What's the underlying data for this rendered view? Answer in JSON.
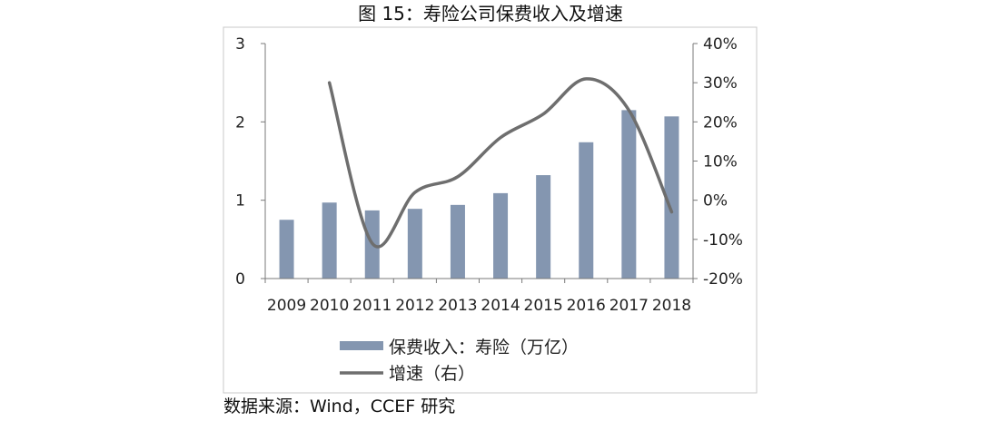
{
  "title": "图 15：寿险公司保费收入及增速",
  "source": "数据来源：Wind，CCEF 研究",
  "chart_data": {
    "type": "bar+line",
    "categories": [
      "2009",
      "2010",
      "2011",
      "2012",
      "2013",
      "2014",
      "2015",
      "2016",
      "2017",
      "2018"
    ],
    "series": [
      {
        "name": "保费收入：寿险（万亿）",
        "type": "bar",
        "axis": "left",
        "values": [
          0.75,
          0.97,
          0.87,
          0.89,
          0.94,
          1.09,
          1.32,
          1.74,
          2.15,
          2.07
        ],
        "color": "#8496B0"
      },
      {
        "name": "增速（右）",
        "type": "line",
        "axis": "right",
        "values": [
          null,
          30,
          -11,
          2,
          6,
          16,
          22,
          31,
          23,
          -3
        ],
        "color": "#6E6E6E"
      }
    ],
    "y_left": {
      "lim": [
        0,
        3
      ],
      "ticks": [
        "0",
        "1",
        "2",
        "3"
      ],
      "tick_values": [
        0,
        1,
        2,
        3
      ]
    },
    "y_right": {
      "lim": [
        -20,
        40
      ],
      "ticks": [
        "-20%",
        "-10%",
        "0%",
        "10%",
        "20%",
        "30%",
        "40%"
      ],
      "tick_values": [
        -20,
        -10,
        0,
        10,
        20,
        30,
        40
      ]
    },
    "legend": {
      "position": "bottom"
    },
    "grid": false
  }
}
